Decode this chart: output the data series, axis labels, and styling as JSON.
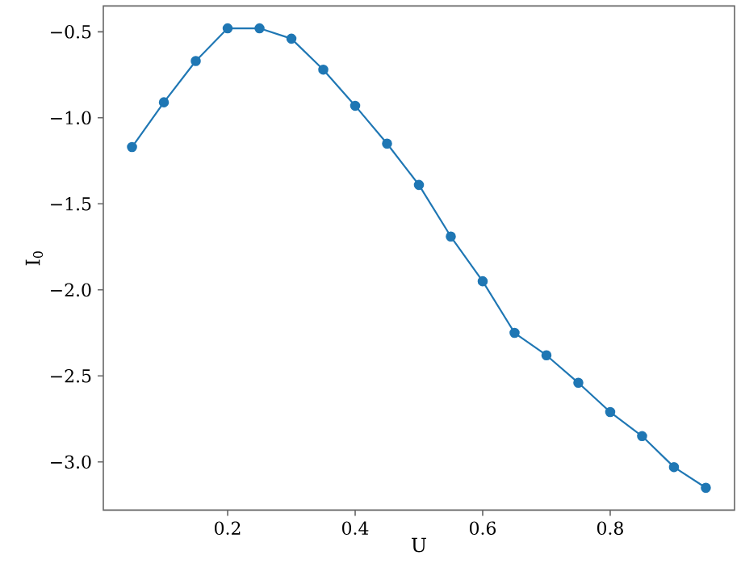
{
  "chart_data": {
    "type": "line",
    "xlabel": "U",
    "ylabel": "I$_{0}$",
    "x": [
      0.05,
      0.1,
      0.15,
      0.2,
      0.25,
      0.3,
      0.35,
      0.4,
      0.45,
      0.5,
      0.55,
      0.6,
      0.65,
      0.7,
      0.75,
      0.8,
      0.85,
      0.9,
      0.95
    ],
    "series": [
      {
        "color": "#1f77b4",
        "values": [
          -1.17,
          -0.91,
          -0.67,
          -0.48,
          -0.48,
          -0.54,
          -0.72,
          -0.93,
          -1.15,
          -1.39,
          -1.69,
          -1.95,
          -2.25,
          -2.38,
          -2.54,
          -2.71,
          -2.85,
          -3.03,
          -3.15
        ]
      }
    ],
    "xlim": [
      0.005,
      0.995
    ],
    "ylim": [
      -3.28,
      -0.35
    ],
    "xticks": [
      0.2,
      0.4,
      0.6,
      0.8
    ],
    "yticks": [
      {
        "value": -3.0,
        "label": "−3.0"
      },
      {
        "value": -2.5,
        "label": "−2.5"
      },
      {
        "value": -2.0,
        "label": "−2.0"
      },
      {
        "value": -1.5,
        "label": "−1.5"
      },
      {
        "value": -1.0,
        "label": "−1.0"
      },
      {
        "value": -0.5,
        "label": "−0.5"
      }
    ],
    "marker": "circle",
    "line_style": "solid"
  }
}
